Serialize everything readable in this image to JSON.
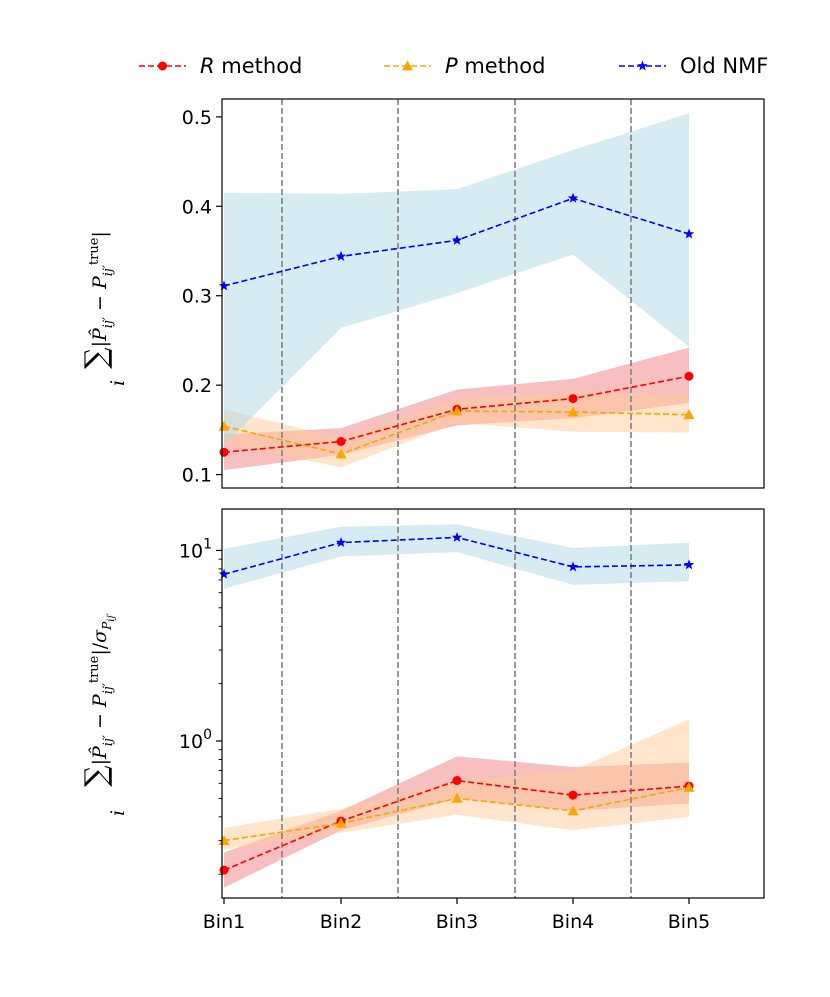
{
  "chart_data": {
    "categories": [
      "Bin1",
      "Bin2",
      "Bin3",
      "Bin4",
      "Bin5"
    ],
    "legend": [
      {
        "name": "R method",
        "italic_letter": "R",
        "rest": " method",
        "color": "#ff0000",
        "marker": "circle"
      },
      {
        "name": "P method",
        "italic_letter": "P",
        "rest": " method",
        "color": "#ffa500",
        "marker": "triangle"
      },
      {
        "name": "Old NMF",
        "italic_letter": "",
        "rest": "Old NMF",
        "color": "#0000ff",
        "marker": "star"
      }
    ],
    "panels": [
      {
        "type": "line",
        "yscale": "linear",
        "ylim": [
          0.085,
          0.52
        ],
        "yticks": [
          0.1,
          0.2,
          0.3,
          0.4,
          0.5
        ],
        "ytick_labels": [
          "0.1",
          "0.2",
          "0.3",
          "0.4",
          "0.5"
        ],
        "ylabel": "∑ᵢ|P̂ᵢⱼ′ − Pᵢⱼ′ᵗʳᵘᵉ|",
        "series": [
          {
            "name": "R method",
            "color": "#ff0000",
            "band_color": "#f08080",
            "marker": "circle",
            "values": [
              0.125,
              0.137,
              0.173,
              0.185,
              0.21
            ],
            "lower": [
              0.105,
              0.122,
              0.155,
              0.163,
              0.18
            ],
            "upper": [
              0.145,
              0.152,
              0.195,
              0.207,
              0.242
            ]
          },
          {
            "name": "P method",
            "color": "#ffa500",
            "band_color": "#ffcc99",
            "marker": "triangle",
            "values": [
              0.154,
              0.123,
              0.171,
              0.17,
              0.167
            ],
            "lower": [
              0.135,
              0.108,
              0.158,
              0.148,
              0.147
            ],
            "upper": [
              0.173,
              0.14,
              0.185,
              0.192,
              0.19
            ]
          },
          {
            "name": "Old NMF",
            "color": "#0000ff",
            "band_color": "#add8e6",
            "marker": "star",
            "values": [
              0.311,
              0.344,
              0.362,
              0.409,
              0.369
            ],
            "lower": [
              0.133,
              0.264,
              0.303,
              0.346,
              0.243
            ],
            "upper": [
              0.415,
              0.414,
              0.419,
              0.463,
              0.504
            ]
          }
        ]
      },
      {
        "type": "line",
        "yscale": "log",
        "ylim": [
          0.15,
          16.5
        ],
        "yticks": [
          1,
          10
        ],
        "ytick_labels": [
          {
            "base": "10",
            "exp": "0"
          },
          {
            "base": "10",
            "exp": "1"
          }
        ],
        "ylabel": "∑ᵢ|P̂ᵢⱼ′ − Pᵢⱼ′ᵗʳᵘᵉ|/σPᵢⱼ′",
        "series": [
          {
            "name": "R method",
            "color": "#ff0000",
            "band_color": "#f08080",
            "marker": "circle",
            "values": [
              0.21,
              0.38,
              0.62,
              0.52,
              0.58
            ],
            "lower": [
              0.17,
              0.34,
              0.5,
              0.43,
              0.47
            ],
            "upper": [
              0.26,
              0.43,
              0.83,
              0.73,
              0.77
            ]
          },
          {
            "name": "P method",
            "color": "#ffa500",
            "band_color": "#ffcc99",
            "marker": "triangle",
            "values": [
              0.3,
              0.37,
              0.5,
              0.43,
              0.57
            ],
            "lower": [
              0.27,
              0.33,
              0.41,
              0.34,
              0.4
            ],
            "upper": [
              0.35,
              0.44,
              0.62,
              0.7,
              1.3
            ]
          },
          {
            "name": "Old NMF",
            "color": "#0000ff",
            "band_color": "#add8e6",
            "marker": "star",
            "values": [
              7.5,
              11.0,
              11.7,
              8.2,
              8.4
            ],
            "lower": [
              6.3,
              9.3,
              9.8,
              6.6,
              6.9
            ],
            "upper": [
              10.2,
              13.3,
              13.7,
              10.3,
              11.0
            ]
          }
        ]
      }
    ]
  }
}
